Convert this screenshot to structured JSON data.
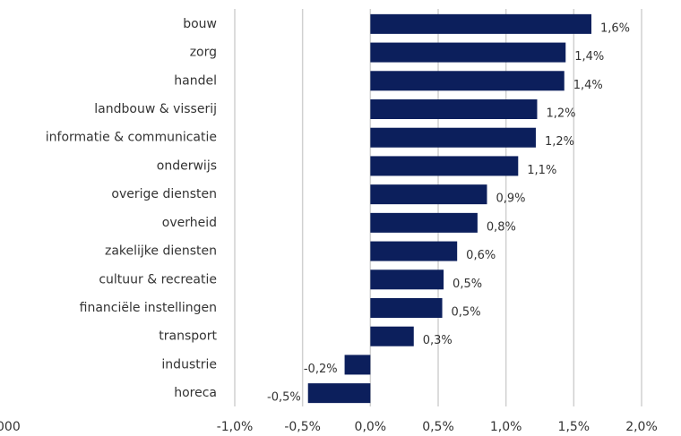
{
  "chart_data": {
    "type": "bar",
    "orientation": "horizontal",
    "categories": [
      "bouw",
      "zorg",
      "handel",
      "landbouw & visserij",
      "informatie & communicatie",
      "onderwijs",
      "overige diensten",
      "overheid",
      "zakelijke diensten",
      "cultuur & recreatie",
      "financiële instellingen",
      "transport",
      "industrie",
      "horeca"
    ],
    "values": [
      1.63,
      1.44,
      1.43,
      1.23,
      1.22,
      1.09,
      0.86,
      0.79,
      0.64,
      0.54,
      0.53,
      0.32,
      -0.19,
      -0.46
    ],
    "value_labels": [
      "1,6%",
      "1,4%",
      "1,4%",
      "1,2%",
      "1,2%",
      "1,1%",
      "0,9%",
      "0,8%",
      "0,6%",
      "0,5%",
      "0,5%",
      "0,3%",
      "-0,2%",
      "-0,5%"
    ],
    "color": "#0c1f5c",
    "xlim": [
      -1.0,
      2.0
    ],
    "xticks": [
      {
        "value": -1.0,
        "label": "-1,0%"
      },
      {
        "value": -0.5,
        "label": "-0,5%"
      },
      {
        "value": 0,
        "label": "0,0%"
      },
      {
        "value": 0.5,
        "label": "0,5%"
      },
      {
        "value": 1.0,
        "label": "1,0%"
      },
      {
        "value": 1.5,
        "label": "1,5%"
      },
      {
        "value": 2.0,
        "label": "2,0%"
      }
    ],
    "grid": true,
    "cut_off_text": "000"
  }
}
